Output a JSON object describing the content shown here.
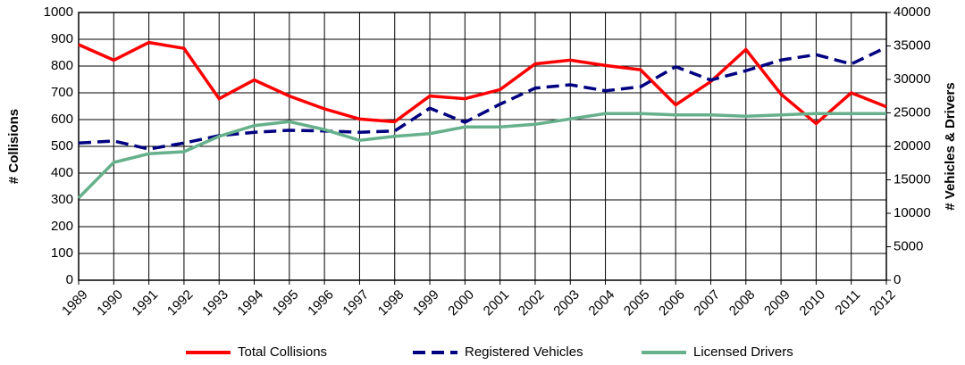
{
  "chart_data": {
    "type": "line",
    "y_label": "# Collisions",
    "y2_label": "# Vehicles & Drivers",
    "x": [
      1989,
      1990,
      1991,
      1992,
      1993,
      1994,
      1995,
      1996,
      1997,
      1998,
      1999,
      2000,
      2001,
      2002,
      2003,
      2004,
      2005,
      2006,
      2007,
      2008,
      2009,
      2010,
      2011,
      2012
    ],
    "xlim": [
      1989,
      2012
    ],
    "xticks": [
      1989,
      1990,
      1991,
      1992,
      1993,
      1994,
      1995,
      1996,
      1997,
      1998,
      1999,
      2000,
      2001,
      2002,
      2003,
      2004,
      2005,
      2006,
      2007,
      2008,
      2009,
      2010,
      2011,
      2012
    ],
    "ylim": [
      0,
      1000
    ],
    "yticks": [
      0,
      100,
      200,
      300,
      400,
      500,
      600,
      700,
      800,
      900,
      1000
    ],
    "y2lim": [
      0,
      40000
    ],
    "y2ticks": [
      0,
      5000,
      10000,
      15000,
      20000,
      25000,
      30000,
      35000,
      40000
    ],
    "grid": true,
    "legend": "bottom",
    "series": [
      {
        "name": "Total Collisions",
        "color": "#ff0000",
        "style": "solid",
        "values": [
          880,
          822,
          888,
          866,
          678,
          748,
          688,
          640,
          602,
          592,
          688,
          678,
          712,
          808,
          822,
          802,
          786,
          655,
          742,
          862,
          695,
          585,
          700,
          648
        ]
      },
      {
        "name": "Registered Vehicles",
        "color": "#000080",
        "style": "dashed",
        "axis": "y2",
        "values": [
          20500,
          20800,
          19600,
          20500,
          21600,
          22100,
          22400,
          22300,
          22100,
          22300,
          25700,
          23600,
          26300,
          28700,
          29200,
          28300,
          28900,
          31900,
          29900,
          31300,
          32900,
          33700,
          32300,
          34800
        ]
      },
      {
        "name": "Licensed Drivers",
        "color": "#66b08c",
        "style": "solid",
        "axis": "y2",
        "values": [
          12300,
          17600,
          18900,
          19200,
          21500,
          23100,
          23700,
          22500,
          20900,
          21500,
          21900,
          22900,
          22900,
          23300,
          24100,
          24900,
          24900,
          24700,
          24700,
          24500,
          24700,
          24900,
          24900,
          24900
        ]
      }
    ]
  }
}
